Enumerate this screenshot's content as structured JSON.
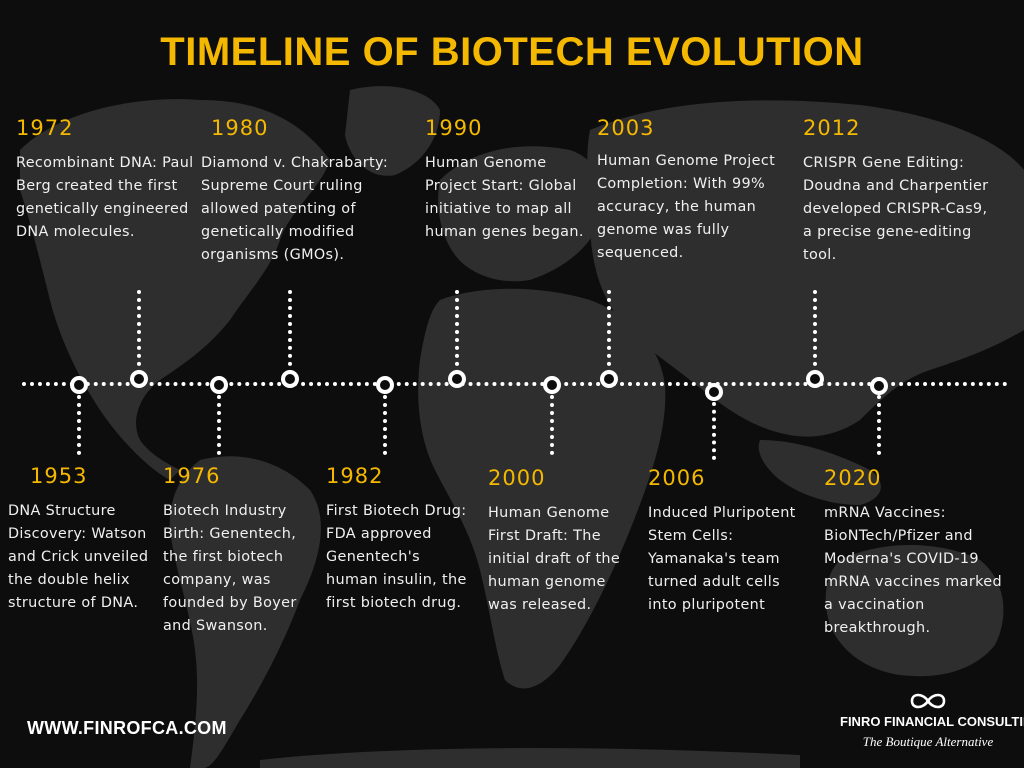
{
  "title": "TIMELINE OF BIOTECH EVOLUTION",
  "colors": {
    "accent": "#f5b800",
    "background": "#0d0d0d",
    "map": "#2e2e2e",
    "text": "#f0f0f0"
  },
  "top_events": [
    {
      "year": "1972",
      "text": "Recombinant DNA: Paul Berg created the first genetically engineered DNA molecules."
    },
    {
      "year": "1980",
      "text": "Diamond v. Chakrabarty: Supreme Court ruling allowed patenting of genetically modified organisms (GMOs)."
    },
    {
      "year": "1990",
      "text": "Human Genome Project Start: Global initiative to map all human genes began."
    },
    {
      "year": "2003",
      "text": "Human Genome Project Completion: With 99% accuracy, the human genome was fully sequenced."
    },
    {
      "year": "2012",
      "text": "CRISPR Gene Editing: Doudna and Charpentier developed CRISPR-Cas9, a precise gene-editing tool."
    }
  ],
  "bottom_events": [
    {
      "year": "1953",
      "text": "DNA Structure Discovery: Watson and Crick unveiled the double helix structure of DNA."
    },
    {
      "year": "1976",
      "text": "Biotech Industry Birth: Genentech, the first biotech company, was founded by Boyer and Swanson."
    },
    {
      "year": "1982",
      "text": "First Biotech Drug: FDA approved Genentech's human insulin, the first biotech drug."
    },
    {
      "year": "2000",
      "text": "Human Genome First Draft: The initial draft of the human genome was released."
    },
    {
      "year": "2006",
      "text": "Induced Pluripotent Stem Cells: Yamanaka's team turned adult cells into pluripotent"
    },
    {
      "year": "2020",
      "text": "mRNA Vaccines: BioNTech/Pfizer and Moderna's COVID-19 mRNA vaccines marked a vaccination breakthrough."
    }
  ],
  "footer": {
    "website": "WWW.FINROFCA.COM",
    "brand_logo_icon": "infinity-icon",
    "brand_name": "FINRO FINANCIAL CONSULTING",
    "brand_tagline": "The Boutique Alternative"
  }
}
